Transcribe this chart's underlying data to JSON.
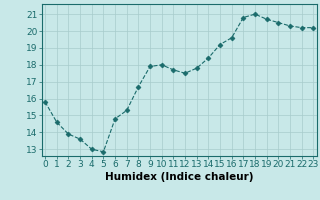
{
  "x": [
    0,
    1,
    2,
    3,
    4,
    5,
    6,
    7,
    8,
    9,
    10,
    11,
    12,
    13,
    14,
    15,
    16,
    17,
    18,
    19,
    20,
    21,
    22,
    23
  ],
  "y": [
    15.8,
    14.6,
    13.9,
    13.6,
    13.0,
    12.85,
    14.8,
    15.3,
    16.7,
    17.9,
    18.0,
    17.7,
    17.5,
    17.8,
    18.4,
    19.2,
    19.6,
    20.8,
    21.0,
    20.7,
    20.5,
    20.3,
    20.2,
    20.2
  ],
  "line_color": "#1a6b6b",
  "marker": "D",
  "marker_size": 2.5,
  "bg_color": "#c8e8e8",
  "grid_color": "#a8cccc",
  "xlabel": "Humidex (Indice chaleur)",
  "xlabel_fontsize": 7.5,
  "yticks": [
    13,
    14,
    15,
    16,
    17,
    18,
    19,
    20,
    21
  ],
  "xticks": [
    0,
    1,
    2,
    3,
    4,
    5,
    6,
    7,
    8,
    9,
    10,
    11,
    12,
    13,
    14,
    15,
    16,
    17,
    18,
    19,
    20,
    21,
    22,
    23
  ],
  "xlim": [
    -0.3,
    23.3
  ],
  "ylim": [
    12.6,
    21.6
  ],
  "tick_fontsize": 6.5,
  "spine_color": "#1a6b6b"
}
